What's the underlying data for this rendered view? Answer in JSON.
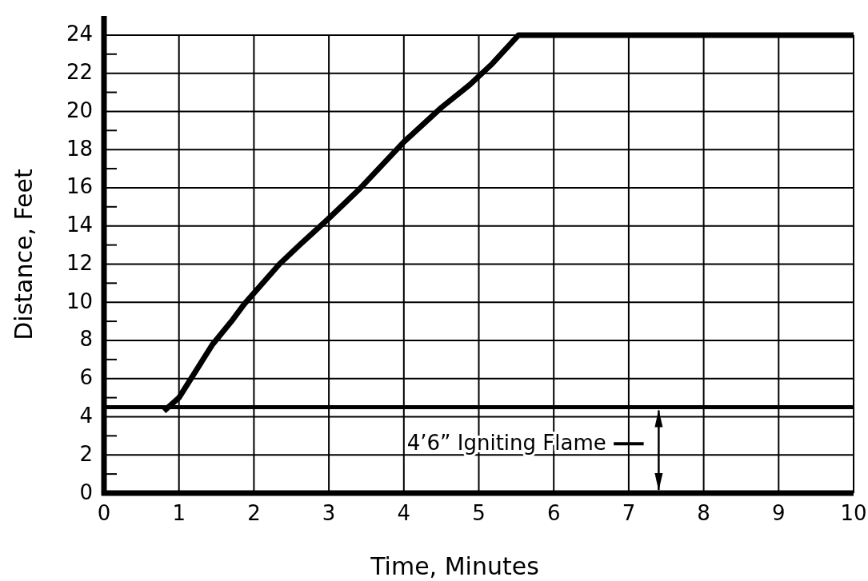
{
  "chart_data": {
    "type": "line",
    "xlabel": "Time,  Minutes",
    "ylabel": "Distance,  Feet",
    "x": [
      0.8,
      1,
      1.45,
      1.7,
      1.87,
      2.34,
      2.61,
      3,
      3.4,
      4,
      4.5,
      4.88,
      5.18,
      5.53,
      10
    ],
    "series": [
      {
        "color": "#000000",
        "values": [
          4.3,
          5,
          7.8,
          9,
          9.9,
          12,
          13,
          14.4,
          15.9,
          18.4,
          20.2,
          21.4,
          22.5,
          24,
          24
        ]
      }
    ],
    "xlim": [
      0,
      10
    ],
    "ylim": [
      0,
      25
    ],
    "xticks": [
      0,
      1,
      2,
      3,
      4,
      5,
      6,
      7,
      8,
      9,
      10
    ],
    "yticks": [
      0,
      {
        "value": 1,
        "label": null
      },
      2,
      {
        "value": 3,
        "label": null
      },
      4,
      {
        "value": 5,
        "label": null
      },
      6,
      {
        "value": 7,
        "label": null
      },
      8,
      {
        "value": 9,
        "label": null
      },
      10,
      {
        "value": 11,
        "label": null
      },
      12,
      {
        "value": 13,
        "label": null
      },
      14,
      {
        "value": 15,
        "label": null
      },
      16,
      {
        "value": 17,
        "label": null
      },
      18,
      {
        "value": 19,
        "label": null
      },
      20,
      {
        "value": 21,
        "label": null
      },
      22,
      {
        "value": 23,
        "label": null
      },
      24
    ],
    "grid": true,
    "marker": "none",
    "line_style": "solid",
    "ref_lines": [
      {
        "axis": "y",
        "value": 4.5,
        "label": "4’6”  Igniting Flame",
        "color": "#000000"
      }
    ]
  }
}
